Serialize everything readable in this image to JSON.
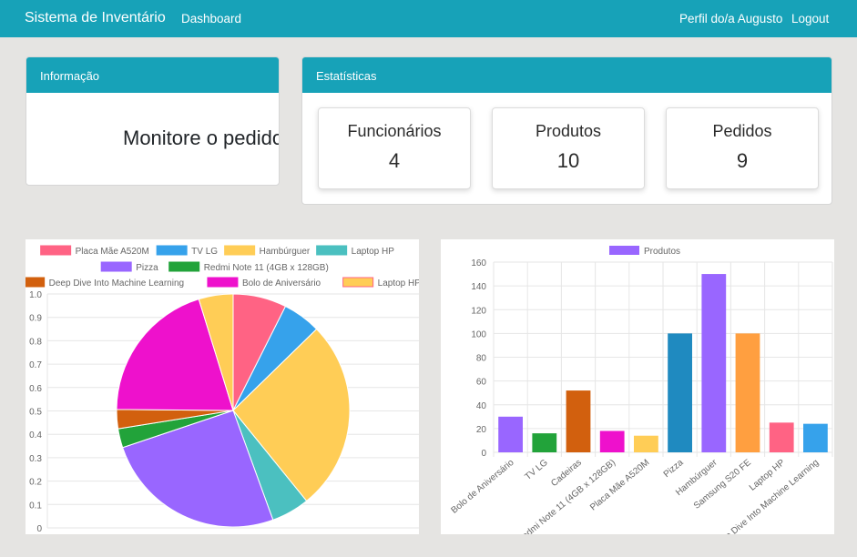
{
  "navbar": {
    "brand": "Sistema de Inventário",
    "dashboard": "Dashboard",
    "profile": "Perfil do/a Augusto",
    "logout": "Logout"
  },
  "info_card": {
    "header": "Informação",
    "text": "Monitore o pedido"
  },
  "stats_card": {
    "header": "Estatísticas",
    "items": [
      {
        "label": "Funcionários",
        "value": "4"
      },
      {
        "label": "Produtos",
        "value": "10"
      },
      {
        "label": "Pedidos",
        "value": "9"
      }
    ]
  },
  "chart_data": [
    {
      "type": "pie",
      "legend_position": "top",
      "labels": [
        "Placa Mãe A520M",
        "TV LG",
        "Hambúrguer",
        "Laptop HP",
        "Pizza",
        "Redmi Note 11 (4GB x 128GB)",
        "Deep Dive Into Machine Learning",
        "Bolo de Aniversário",
        "Laptop HP"
      ],
      "values": [
        14,
        10,
        50,
        10,
        48,
        5,
        5,
        38,
        9
      ],
      "colors": [
        "#ff6384",
        "#36a2eb",
        "#ffcd56",
        "#4bc0c0",
        "#9966ff",
        "#22a33a",
        "#d2600e",
        "#ee11cc",
        "#ffcd56"
      ],
      "y_ticks": [
        "1.0",
        "0.9",
        "0.8",
        "0.7",
        "0.6",
        "0.5",
        "0.4",
        "0.3",
        "0.2",
        "0.1",
        "0"
      ],
      "grid": true
    },
    {
      "type": "bar",
      "legend": "Produtos",
      "legend_color": "#9966ff",
      "legend_position": "top",
      "categories": [
        "Bolo de Aniversário",
        "TV LG",
        "Cadeiras",
        "Redmi Note 11 (4GB x 128GB)",
        "Placa Mãe A520M",
        "Pizza",
        "Hambúrguer",
        "Samsung S20 FE",
        "Laptop HP",
        "Deep Dive Into Machine Learning"
      ],
      "values": [
        30,
        16,
        52,
        18,
        14,
        100,
        150,
        100,
        25,
        24
      ],
      "colors": [
        "#9966ff",
        "#22a33a",
        "#d2600e",
        "#ee11cc",
        "#ffcd56",
        "#1f8ac0",
        "#9966ff",
        "#ff9f40",
        "#ff6384",
        "#36a2eb"
      ],
      "ylim": [
        0,
        160
      ],
      "y_ticks": [
        0,
        20,
        40,
        60,
        80,
        100,
        120,
        140,
        160
      ],
      "grid": true
    }
  ]
}
